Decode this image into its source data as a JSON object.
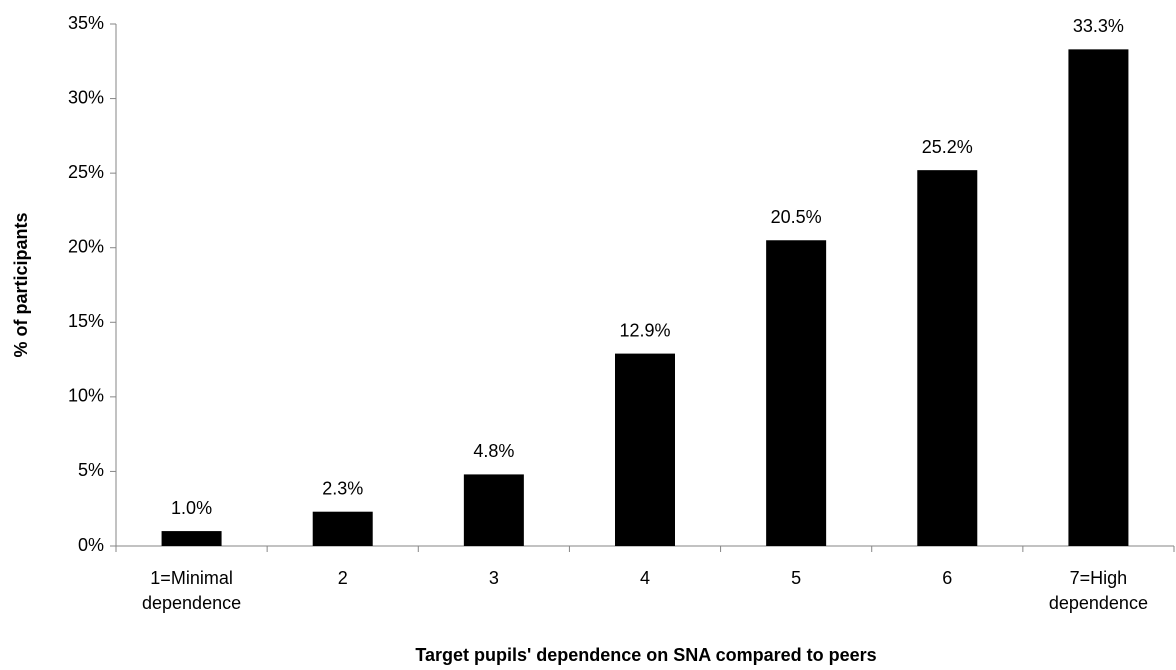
{
  "chart_data": {
    "type": "bar",
    "x_label": "Target pupils' dependence on SNA compared to peers",
    "y_label": "% of participants",
    "categories": [
      "1=Minimal dependence",
      "2",
      "3",
      "4",
      "5",
      "6",
      "7=High dependence"
    ],
    "values": [
      1.0,
      2.3,
      4.8,
      12.9,
      20.5,
      25.2,
      33.3
    ],
    "value_labels": [
      "1.0%",
      "2.3%",
      "4.8%",
      "12.9%",
      "20.5%",
      "25.2%",
      "33.3%"
    ],
    "color": "#000000",
    "ylim": [
      0,
      35
    ],
    "yticks": [
      {
        "value": 0,
        "label": "0%"
      },
      {
        "value": 5,
        "label": "5%"
      },
      {
        "value": 10,
        "label": "10%"
      },
      {
        "value": 15,
        "label": "15%"
      },
      {
        "value": 20,
        "label": "20%"
      },
      {
        "value": 25,
        "label": "25%"
      },
      {
        "value": 30,
        "label": "30%"
      },
      {
        "value": 35,
        "label": "35%"
      }
    ],
    "grid": false
  }
}
